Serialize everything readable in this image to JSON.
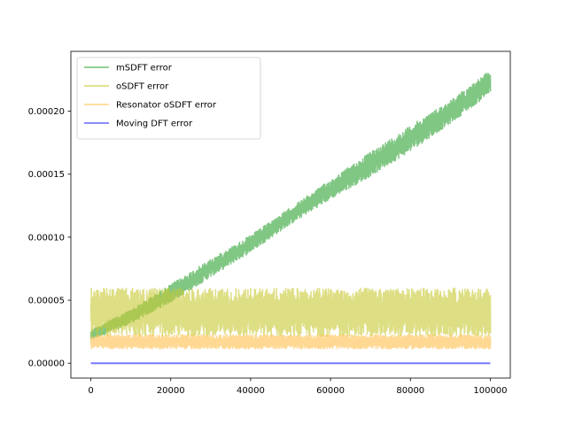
{
  "chart_data": {
    "type": "line",
    "title": "",
    "xlabel": "",
    "ylabel": "",
    "xlim": [
      -5000,
      105000
    ],
    "ylim": [
      -1.18e-05,
      0.0002475
    ],
    "xticks": [
      0,
      20000,
      40000,
      60000,
      80000,
      100000
    ],
    "xtick_labels": [
      "0",
      "20000",
      "40000",
      "60000",
      "80000",
      "100000"
    ],
    "yticks": [
      0,
      5e-05,
      0.0001,
      0.00015,
      0.0002
    ],
    "ytick_labels": [
      "0.00000",
      "0.00005",
      "0.00010",
      "0.00015",
      "0.00020"
    ],
    "grid": false,
    "legend_position": "upper-left",
    "series": [
      {
        "name": "mSDFT error",
        "color": "#4caf50",
        "opacity": 0.7,
        "x": [
          0,
          10000,
          20000,
          30000,
          40000,
          50000,
          60000,
          70000,
          80000,
          90000,
          100000
        ],
        "lower": [
          1.8e-05,
          3.1e-05,
          4.8e-05,
          6.8e-05,
          8.8e-05,
          0.00011,
          0.00013,
          0.000148,
          0.000168,
          0.00019,
          0.000214
        ],
        "upper": [
          2.7e-05,
          4.3e-05,
          6.3e-05,
          8.3e-05,
          0.000102,
          0.000124,
          0.000146,
          0.000168,
          0.000189,
          0.000209,
          0.000233
        ]
      },
      {
        "name": "oSDFT error",
        "color": "#c8c832",
        "opacity": 0.6,
        "x": [
          0,
          100000
        ],
        "lower": [
          2.1e-05,
          2.1e-05
        ],
        "upper": [
          6e-05,
          6e-05
        ]
      },
      {
        "name": "Resonator oSDFT error",
        "color": "#ffc04d",
        "opacity": 0.6,
        "x": [
          0,
          100000
        ],
        "lower": [
          1.1e-05,
          1.1e-05
        ],
        "upper": [
          2.3e-05,
          2.3e-05
        ]
      },
      {
        "name": "Moving DFT error",
        "color": "#4040ff",
        "opacity": 0.7,
        "x": [
          0,
          100000
        ],
        "values": [
          0,
          0
        ]
      }
    ]
  }
}
